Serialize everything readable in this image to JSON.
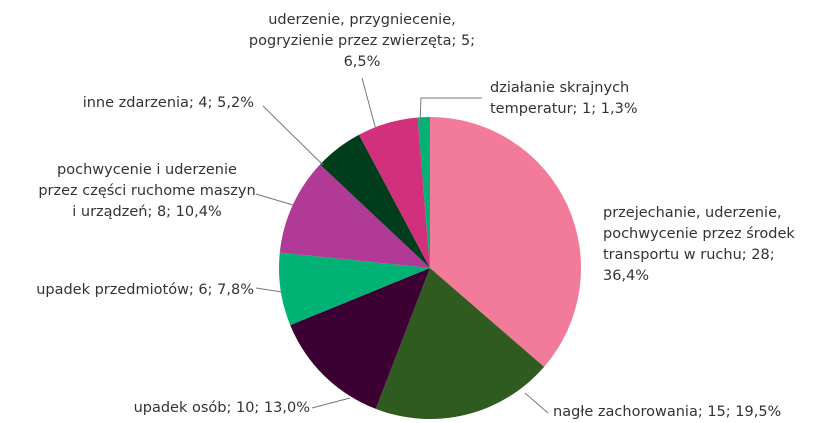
{
  "chart_data": {
    "type": "pie",
    "values": [
      28,
      15,
      10,
      6,
      8,
      4,
      5,
      1
    ],
    "value_labels": [
      "przejechanie, uderzenie, pochwycenie przez środek transportu w ruchu; 28; 36,4%",
      "nagłe zachorowania; 15; 19,5%",
      "upadek osób; 10; 13,0%",
      "upadek przedmiotów; 6; 7,8%",
      "pochwycenie i uderzenie przez części ruchome maszyn i urządzeń; 8; 10,4%",
      "inne zdarzenia; 4; 5,2%",
      "uderzenie, przygniecenie, pogryzienie przez zwierzęta; 5; 6,5%",
      "działanie skrajnych temperatur; 1; 1,3%"
    ],
    "colors": [
      "#f27b9c",
      "#2f5b20",
      "#3c0033",
      "#00b374",
      "#b13a97",
      "#003d1d",
      "#d2307c",
      "#00b374"
    ]
  }
}
